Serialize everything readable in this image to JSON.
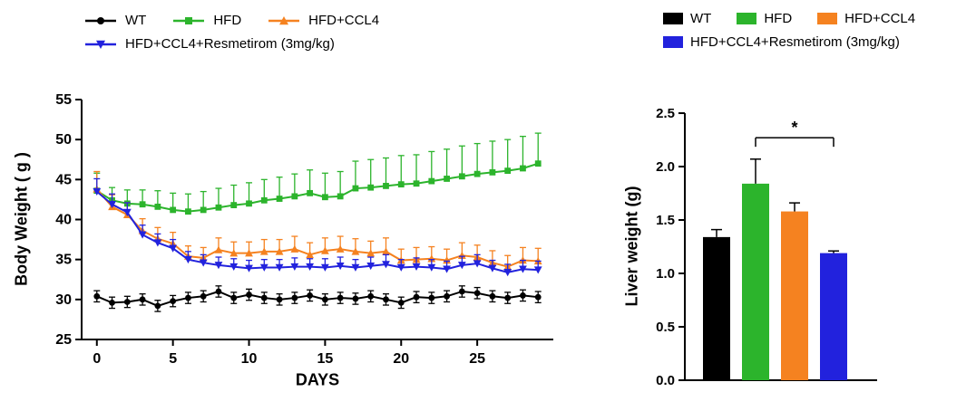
{
  "accent_colors": {
    "black": "#000000",
    "green": "#2CB42C",
    "orange": "#F58220",
    "blue": "#2222DD"
  },
  "chart_data": [
    {
      "type": "line",
      "title": "",
      "xlabel": "DAYS",
      "ylabel": "Body Weight ( g )",
      "xlim": [
        -1,
        30
      ],
      "ylim": [
        25,
        55
      ],
      "yticks": [
        25,
        30,
        35,
        40,
        45,
        50,
        55
      ],
      "xticks": [
        0,
        5,
        10,
        15,
        20,
        25
      ],
      "grid": false,
      "legend_position": "top-left",
      "legend_rows": [
        [
          0,
          1,
          2
        ],
        [
          3
        ]
      ],
      "x": [
        0,
        1,
        2,
        3,
        4,
        5,
        6,
        7,
        8,
        9,
        10,
        11,
        12,
        13,
        14,
        15,
        16,
        17,
        18,
        19,
        20,
        21,
        22,
        23,
        24,
        25,
        26,
        27,
        28,
        29
      ],
      "series": [
        {
          "name": "WT",
          "color": "#000000",
          "marker": "circle",
          "errdir": "both",
          "values": [
            30.4,
            29.6,
            29.7,
            30.0,
            29.2,
            29.8,
            30.2,
            30.4,
            31.0,
            30.2,
            30.6,
            30.2,
            30.0,
            30.2,
            30.5,
            30.0,
            30.2,
            30.1,
            30.4,
            30.0,
            29.6,
            30.3,
            30.2,
            30.4,
            31.0,
            30.8,
            30.4,
            30.2,
            30.5,
            30.3
          ],
          "errors": [
            0.7,
            0.7,
            0.7,
            0.7,
            0.7,
            0.7,
            0.7,
            0.7,
            0.7,
            0.7,
            0.7,
            0.7,
            0.7,
            0.7,
            0.7,
            0.7,
            0.7,
            0.7,
            0.7,
            0.7,
            0.7,
            0.7,
            0.7,
            0.7,
            0.7,
            0.7,
            0.7,
            0.7,
            0.7,
            0.7
          ]
        },
        {
          "name": "HFD",
          "color": "#2CB42C",
          "marker": "square",
          "errdir": "up",
          "values": [
            43.6,
            42.4,
            42.0,
            41.9,
            41.6,
            41.2,
            41.0,
            41.2,
            41.5,
            41.8,
            42.0,
            42.4,
            42.6,
            42.9,
            43.3,
            42.8,
            42.9,
            43.9,
            44.0,
            44.2,
            44.4,
            44.5,
            44.8,
            45.1,
            45.4,
            45.7,
            45.9,
            46.1,
            46.4,
            47.0
          ],
          "errors": [
            2.2,
            1.6,
            1.7,
            1.8,
            2.0,
            2.1,
            2.2,
            2.3,
            2.4,
            2.5,
            2.6,
            2.6,
            2.7,
            2.8,
            2.9,
            3.0,
            3.1,
            3.4,
            3.5,
            3.5,
            3.6,
            3.6,
            3.7,
            3.7,
            3.8,
            3.8,
            3.9,
            3.9,
            4.0,
            3.8
          ]
        },
        {
          "name": "HFD+CCL4",
          "color": "#F58220",
          "marker": "triangle-up",
          "errdir": "up",
          "values": [
            43.8,
            41.6,
            40.6,
            38.6,
            37.6,
            37.0,
            35.4,
            35.2,
            36.2,
            35.8,
            35.8,
            36.0,
            36.0,
            36.3,
            35.6,
            36.1,
            36.3,
            36.0,
            35.8,
            36.0,
            34.9,
            35.0,
            35.1,
            34.9,
            35.5,
            35.3,
            34.6,
            34.1,
            34.9,
            34.8
          ],
          "errors": [
            2.2,
            1.5,
            1.5,
            1.5,
            1.4,
            1.4,
            1.3,
            1.3,
            1.5,
            1.4,
            1.4,
            1.5,
            1.5,
            1.6,
            1.5,
            1.6,
            1.6,
            1.6,
            1.5,
            1.7,
            1.4,
            1.5,
            1.5,
            1.4,
            1.6,
            1.5,
            1.5,
            1.4,
            1.6,
            1.6
          ]
        },
        {
          "name": "HFD+CCL4+Resmetirom (3mg/kg)",
          "color": "#2222DD",
          "marker": "triangle-down",
          "errdir": "up",
          "values": [
            43.5,
            41.9,
            40.9,
            38.1,
            37.1,
            36.4,
            35.0,
            34.6,
            34.3,
            34.1,
            33.9,
            34.0,
            34.0,
            34.1,
            34.1,
            34.0,
            34.2,
            34.0,
            34.2,
            34.4,
            34.0,
            34.1,
            34.0,
            33.8,
            34.3,
            34.5,
            33.9,
            33.4,
            33.8,
            33.7
          ],
          "errors": [
            1.6,
            1.3,
            1.2,
            1.2,
            1.1,
            1.1,
            1.0,
            1.0,
            1.0,
            1.0,
            1.0,
            1.0,
            1.0,
            1.1,
            1.0,
            1.1,
            1.1,
            1.0,
            1.1,
            1.2,
            1.0,
            1.1,
            1.0,
            1.0,
            1.1,
            1.1,
            1.0,
            1.0,
            1.1,
            1.1
          ]
        }
      ]
    },
    {
      "type": "bar",
      "title": "",
      "xlabel": "",
      "ylabel": "Liver weight (g)",
      "ylim": [
        0,
        2.5
      ],
      "ytick_labels": [
        "0.0",
        "0.5",
        "1.0",
        "1.5",
        "2.0",
        "2.5"
      ],
      "grid": false,
      "legend_position": "top",
      "legend_rows": [
        [
          0,
          1,
          2
        ],
        [
          3
        ]
      ],
      "categories": [
        "WT",
        "HFD",
        "HFD+CCL4",
        "HFD+CCL4+Resmetirom (3mg/kg)"
      ],
      "colors": [
        "#000000",
        "#2CB42C",
        "#F58220",
        "#2222DD"
      ],
      "values": [
        1.34,
        1.84,
        1.58,
        1.19
      ],
      "errors": [
        0.07,
        0.23,
        0.08,
        0.02
      ],
      "significance": {
        "label": "*",
        "from": 1,
        "to": 3,
        "y": 2.27
      }
    }
  ]
}
